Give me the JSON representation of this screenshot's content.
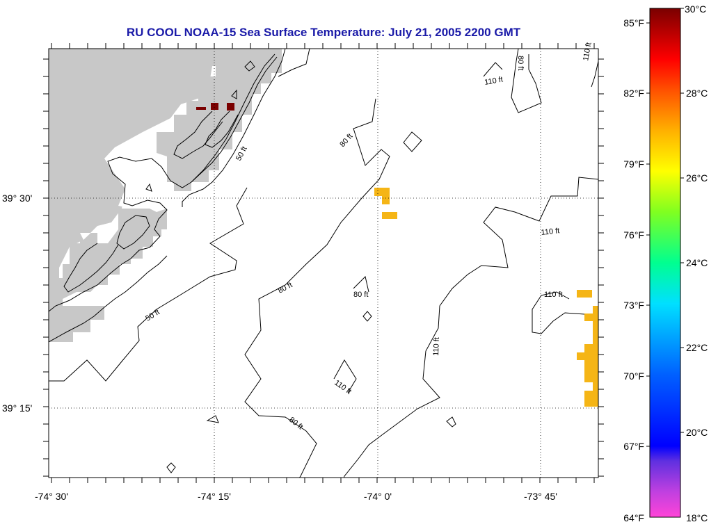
{
  "title": "RU COOL  NOAA-15  Sea Surface Temperature:  July 21, 2005 2200 GMT",
  "axes": {
    "x_ticks": [
      "-74° 30'",
      "-74° 15'",
      "-74° 0'",
      "-73° 45'"
    ],
    "y_ticks": [
      "39° 30'",
      "39° 15'"
    ]
  },
  "contour_labels": [
    "50 ft",
    "50 ft",
    "80 ft",
    "80 ft",
    "80 ft",
    "80 ft",
    "80 ft",
    "110 ft",
    "110 ft",
    "110 ft",
    "110 ft",
    "110 ft",
    "110 ft"
  ],
  "colorbar": {
    "fahrenheit": [
      "85°F",
      "82°F",
      "79°F",
      "76°F",
      "73°F",
      "70°F",
      "67°F",
      "64°F"
    ],
    "celsius": [
      "30°C",
      "28°C",
      "26°C",
      "24°C",
      "22°C",
      "20°C",
      "18°C"
    ]
  },
  "colors": {
    "land": "#c8c8c8",
    "title": "#1a1aa8",
    "warm_pixel": "#f5b516",
    "hot_pixel": "#7a0000"
  }
}
